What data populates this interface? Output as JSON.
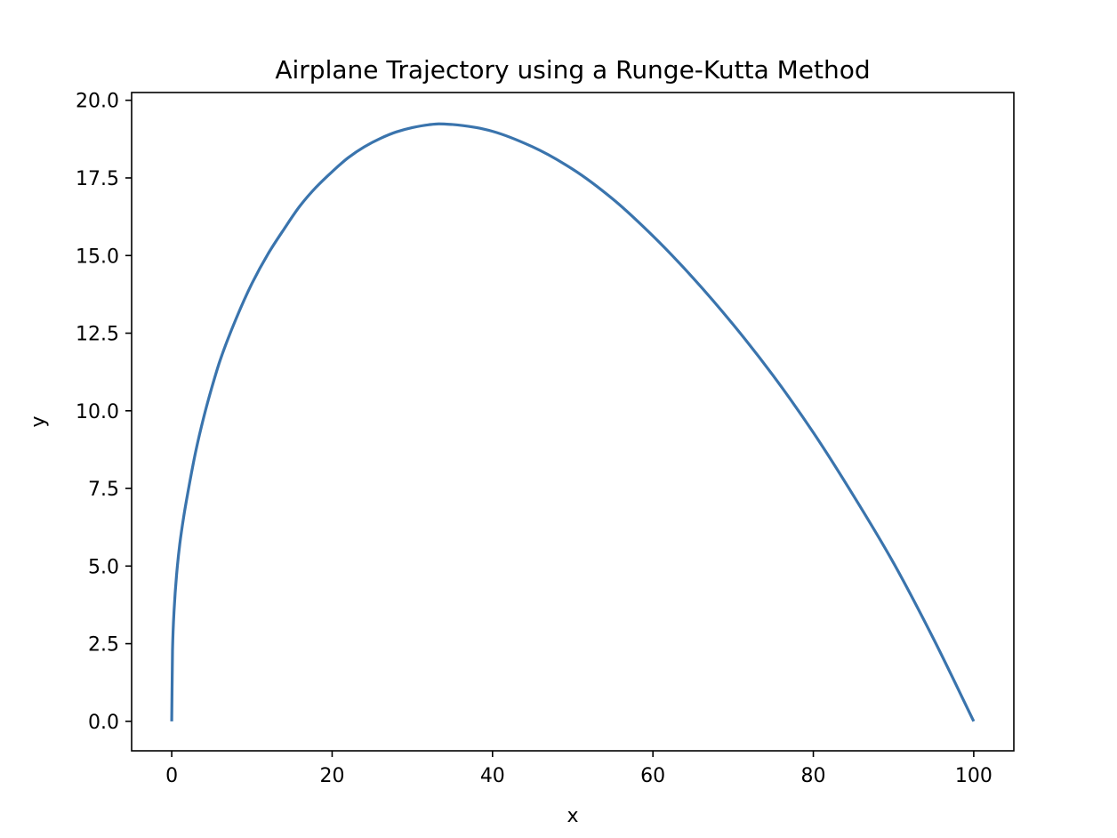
{
  "chart_data": {
    "type": "line",
    "title": "Airplane Trajectory using a Runge-Kutta Method",
    "xlabel": "x",
    "ylabel": "y",
    "xlim": [
      -5,
      105
    ],
    "ylim": [
      -0.95,
      20.25
    ],
    "x_ticks": [
      0,
      20,
      40,
      60,
      80,
      100
    ],
    "y_ticks": [
      0.0,
      2.5,
      5.0,
      7.5,
      10.0,
      12.5,
      15.0,
      17.5,
      20.0
    ],
    "x_tick_labels": [
      "0",
      "20",
      "40",
      "60",
      "80",
      "100"
    ],
    "y_tick_labels": [
      "0.0",
      "2.5",
      "5.0",
      "7.5",
      "10.0",
      "12.5",
      "15.0",
      "17.5",
      "20.0"
    ],
    "grid": false,
    "series": [
      {
        "color": "#3a74ad",
        "x": [
          0,
          0.1,
          0.3,
          0.6,
          1,
          1.5,
          2,
          3,
          4,
          5,
          6,
          8,
          10,
          12,
          14,
          16,
          18,
          20,
          22,
          24,
          26,
          28,
          30,
          32,
          33.3,
          35,
          38,
          40,
          45,
          50,
          55,
          60,
          65,
          70,
          75,
          80,
          85,
          90,
          95,
          100
        ],
        "y": [
          0,
          2.3,
          3.6,
          4.7,
          5.7,
          6.6,
          7.35,
          8.7,
          9.8,
          10.75,
          11.6,
          12.95,
          14.1,
          15.05,
          15.85,
          16.6,
          17.2,
          17.7,
          18.15,
          18.5,
          18.77,
          18.98,
          19.12,
          19.21,
          19.24,
          19.22,
          19.12,
          19.0,
          18.5,
          17.78,
          16.82,
          15.63,
          14.28,
          12.78,
          11.13,
          9.3,
          7.27,
          5.1,
          2.65,
          0
        ]
      }
    ]
  }
}
